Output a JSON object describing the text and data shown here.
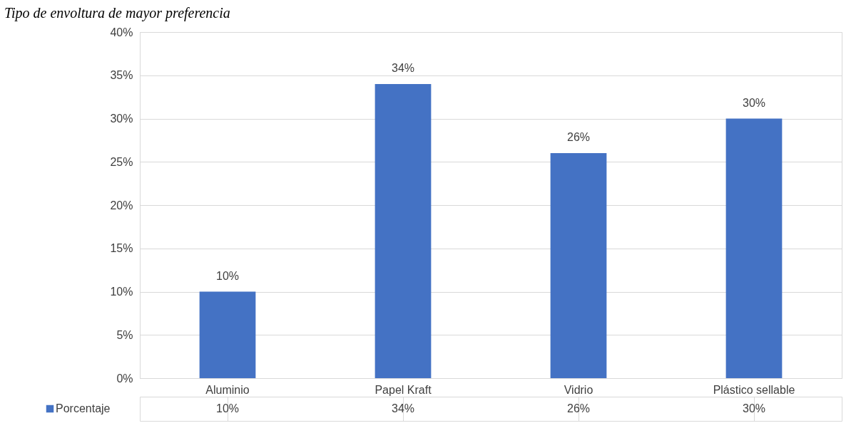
{
  "chart_data": {
    "type": "bar",
    "title": "Tipo de envoltura de mayor preferencia",
    "categories": [
      "Aluminio",
      "Papel Kraft",
      "Vidrio",
      "Plástico sellable"
    ],
    "series": [
      {
        "name": "Porcentaje",
        "color": "#4472c4",
        "values": [
          10,
          34,
          26,
          30
        ],
        "value_labels": [
          "10%",
          "34%",
          "26%",
          "30%"
        ]
      }
    ],
    "ylim": [
      0,
      40
    ],
    "yticks": [
      {
        "value": 0,
        "label": "0%"
      },
      {
        "value": 5,
        "label": "5%"
      },
      {
        "value": 10,
        "label": "10%"
      },
      {
        "value": 15,
        "label": "15%"
      },
      {
        "value": 20,
        "label": "20%"
      },
      {
        "value": 25,
        "label": "25%"
      },
      {
        "value": 30,
        "label": "30%"
      },
      {
        "value": 35,
        "label": "35%"
      },
      {
        "value": 40,
        "label": "40%"
      }
    ],
    "grid": "y",
    "legend": "bottom left"
  }
}
